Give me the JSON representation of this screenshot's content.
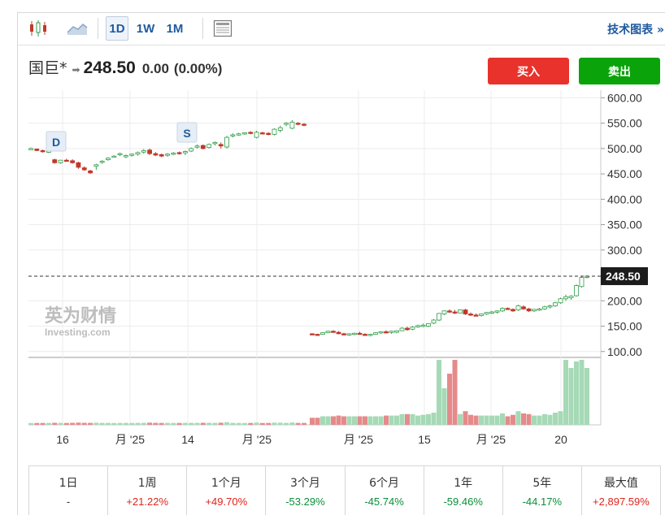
{
  "toolbar": {
    "timeframes": [
      "1D",
      "1W",
      "1M"
    ],
    "active_timeframe": "1D",
    "tech_chart_link": "技术图表 »"
  },
  "quote": {
    "name": "国巨*",
    "price": "248.50",
    "change": "0.00",
    "change_pct": "(0.00%)"
  },
  "actions": {
    "buy": "买入",
    "sell": "卖出"
  },
  "watermark": {
    "cn": "英为财情",
    "en": "Investing.com"
  },
  "chart_data": {
    "type": "candlestick",
    "current_price_label": "248.50",
    "current_price": 248.5,
    "y_ticks": [
      "600.00",
      "550.00",
      "500.00",
      "450.00",
      "400.00",
      "350.00",
      "300.00",
      "200.00",
      "150.00",
      "100.00"
    ],
    "ylim": [
      90,
      615
    ],
    "x_ticks": [
      "16",
      "月 '25",
      "14",
      "月 '25",
      "月 '25",
      "15",
      "月 '25",
      "20"
    ],
    "markers": [
      {
        "label": "D"
      },
      {
        "label": "S"
      }
    ],
    "candles": [
      [
        500,
        502,
        498,
        500
      ],
      [
        499,
        500,
        495,
        496
      ],
      [
        496,
        498,
        492,
        494
      ],
      [
        494,
        497,
        491,
        495
      ],
      [
        478,
        480,
        470,
        472
      ],
      [
        472,
        478,
        470,
        477
      ],
      [
        477,
        480,
        474,
        476
      ],
      [
        476,
        479,
        470,
        472
      ],
      [
        472,
        474,
        460,
        463
      ],
      [
        462,
        465,
        456,
        458
      ],
      [
        456,
        458,
        450,
        452
      ],
      [
        465,
        470,
        458,
        468
      ],
      [
        473,
        477,
        470,
        475
      ],
      [
        478,
        483,
        476,
        481
      ],
      [
        484,
        487,
        482,
        485
      ],
      [
        488,
        492,
        485,
        490
      ],
      [
        484,
        488,
        481,
        486
      ],
      [
        487,
        490,
        484,
        489
      ],
      [
        489,
        494,
        486,
        492
      ],
      [
        493,
        499,
        490,
        496
      ],
      [
        497,
        500,
        487,
        490
      ],
      [
        490,
        493,
        485,
        487
      ],
      [
        488,
        490,
        483,
        485
      ],
      [
        487,
        491,
        484,
        489
      ],
      [
        490,
        493,
        487,
        491
      ],
      [
        492,
        494,
        488,
        490
      ],
      [
        492,
        496,
        487,
        494
      ],
      [
        495,
        502,
        493,
        500
      ],
      [
        504,
        508,
        500,
        505
      ],
      [
        506,
        508,
        498,
        500
      ],
      [
        502,
        510,
        500,
        508
      ],
      [
        510,
        514,
        506,
        512
      ],
      [
        508,
        512,
        500,
        505
      ],
      [
        503,
        525,
        500,
        522
      ],
      [
        526,
        530,
        522,
        527
      ],
      [
        528,
        531,
        525,
        529
      ],
      [
        530,
        532,
        527,
        531
      ],
      [
        532,
        534,
        528,
        530
      ],
      [
        522,
        535,
        520,
        532
      ],
      [
        531,
        533,
        528,
        530
      ],
      [
        530,
        532,
        526,
        529
      ],
      [
        528,
        540,
        526,
        538
      ],
      [
        536,
        545,
        532,
        541
      ],
      [
        548,
        552,
        544,
        550
      ],
      [
        540,
        556,
        538,
        552
      ],
      [
        550,
        552,
        546,
        548
      ],
      [
        548,
        550,
        544,
        546
      ],
      [
        135,
        136,
        133,
        134
      ],
      [
        134,
        135,
        132,
        133
      ],
      [
        134,
        138,
        133,
        137
      ],
      [
        137,
        141,
        136,
        140
      ],
      [
        140,
        142,
        137,
        138
      ],
      [
        138,
        140,
        134,
        135
      ],
      [
        135,
        137,
        132,
        133
      ],
      [
        133,
        136,
        131,
        135
      ],
      [
        134,
        137,
        132,
        136
      ],
      [
        136,
        139,
        134,
        135
      ],
      [
        134,
        136,
        131,
        132
      ],
      [
        132,
        135,
        130,
        134
      ],
      [
        134,
        138,
        133,
        137
      ],
      [
        137,
        140,
        135,
        139
      ],
      [
        139,
        142,
        136,
        138
      ],
      [
        138,
        141,
        135,
        140
      ],
      [
        138,
        142,
        136,
        141
      ],
      [
        141,
        148,
        140,
        146
      ],
      [
        146,
        149,
        141,
        143
      ],
      [
        144,
        150,
        142,
        148
      ],
      [
        149,
        153,
        147,
        151
      ],
      [
        151,
        155,
        148,
        152
      ],
      [
        150,
        156,
        148,
        155
      ],
      [
        156,
        164,
        154,
        162
      ],
      [
        162,
        176,
        160,
        175
      ],
      [
        174,
        181,
        172,
        180
      ],
      [
        180,
        183,
        176,
        178
      ],
      [
        178,
        182,
        174,
        176
      ],
      [
        176,
        183,
        175,
        182
      ],
      [
        182,
        184,
        172,
        174
      ],
      [
        174,
        177,
        170,
        172
      ],
      [
        172,
        175,
        169,
        171
      ],
      [
        171,
        175,
        169,
        174
      ],
      [
        174,
        178,
        172,
        177
      ],
      [
        177,
        180,
        174,
        178
      ],
      [
        178,
        181,
        175,
        180
      ],
      [
        180,
        187,
        178,
        185
      ],
      [
        185,
        187,
        182,
        183
      ],
      [
        183,
        185,
        178,
        180
      ],
      [
        182,
        192,
        180,
        190
      ],
      [
        188,
        191,
        182,
        184
      ],
      [
        184,
        186,
        178,
        180
      ],
      [
        180,
        184,
        178,
        183
      ],
      [
        183,
        186,
        180,
        184
      ],
      [
        184,
        190,
        182,
        188
      ],
      [
        188,
        192,
        185,
        190
      ],
      [
        190,
        198,
        188,
        196
      ],
      [
        196,
        206,
        194,
        204
      ],
      [
        204,
        212,
        200,
        208
      ],
      [
        206,
        211,
        202,
        209
      ],
      [
        210,
        232,
        208,
        230
      ],
      [
        228,
        248,
        226,
        246
      ],
      [
        246,
        250,
        244,
        248.5
      ]
    ],
    "volume_scale": [
      0,
      100
    ]
  },
  "performance": [
    {
      "label": "1日",
      "value": "-",
      "dir": "neu"
    },
    {
      "label": "1周",
      "value": "+21.22%",
      "dir": "pos"
    },
    {
      "label": "1个月",
      "value": "+49.70%",
      "dir": "pos"
    },
    {
      "label": "3个月",
      "value": "-53.29%",
      "dir": "neg"
    },
    {
      "label": "6个月",
      "value": "-45.74%",
      "dir": "neg"
    },
    {
      "label": "1年",
      "value": "-59.46%",
      "dir": "neg"
    },
    {
      "label": "5年",
      "value": "-44.17%",
      "dir": "neg"
    },
    {
      "label": "最大值",
      "value": "+2,897.59%",
      "dir": "pos"
    }
  ],
  "colors": {
    "up": "#2f9d4a",
    "down": "#c0392b",
    "vol_up": "#a6d9b6",
    "vol_down": "#e58a8a"
  }
}
